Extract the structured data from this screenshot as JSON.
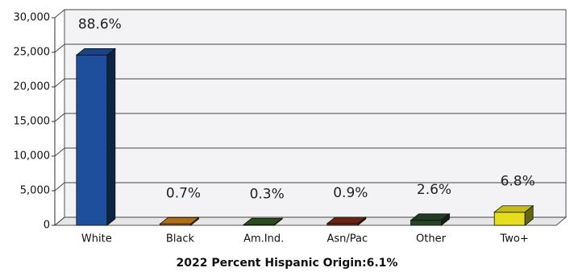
{
  "chart_data": {
    "type": "bar3d",
    "categories": [
      "White",
      "Black",
      "Am.Ind.",
      "Asn/Pac",
      "Other",
      "Two+"
    ],
    "values": [
      24600,
      195,
      85,
      250,
      720,
      1890
    ],
    "percent_labels": [
      "88.6%",
      "0.7%",
      "0.3%",
      "0.9%",
      "2.6%",
      "6.8%"
    ],
    "colors": [
      "#1d4f9c",
      "#d0801e",
      "#2f5a1e",
      "#7a2a18",
      "#27452a",
      "#e6dd1e"
    ],
    "ylim": [
      0,
      30000
    ],
    "yticks": [
      {
        "value": 0,
        "label": "0"
      },
      {
        "value": 5000,
        "label": "5,000"
      },
      {
        "value": 10000,
        "label": "10,000"
      },
      {
        "value": 15000,
        "label": "15,000"
      },
      {
        "value": 20000,
        "label": "20,000"
      },
      {
        "value": 25000,
        "label": "25,000"
      },
      {
        "value": 30000,
        "label": "30,000"
      }
    ],
    "grid": true,
    "caption": "2022 Percent Hispanic Origin:6.1%"
  }
}
